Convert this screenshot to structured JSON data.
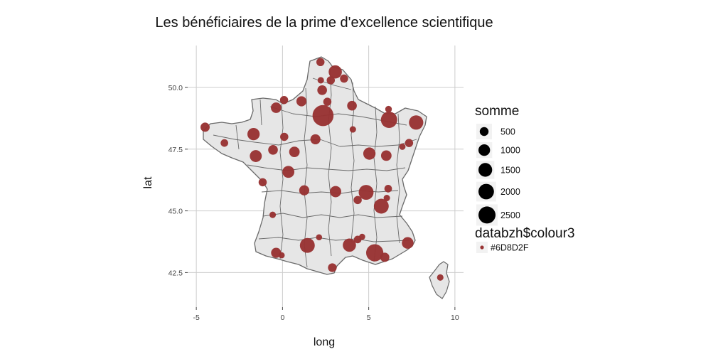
{
  "chart_data": {
    "type": "scatter",
    "title": "Les bénéficiaires de la prime d'excellence scientifique",
    "xlabel": "long",
    "ylabel": "lat",
    "xlim": [
      -5.5,
      10.5
    ],
    "ylim": [
      41.1,
      51.7
    ],
    "x_ticks": [
      -5,
      0,
      5,
      10
    ],
    "y_ticks": [
      42.5,
      45.0,
      47.5,
      50.0
    ],
    "x_tick_labels": [
      "-5",
      "0",
      "5",
      "10"
    ],
    "y_tick_labels": [
      "42.5",
      "45.0",
      "47.5",
      "50.0"
    ],
    "grid": true,
    "background": "France departments basemap",
    "point_color": "#983333",
    "map_fill": "#e6e6e6",
    "map_stroke": "#6a6a6a",
    "legend_placement": "right",
    "size_legend": {
      "title": "somme",
      "entries": [
        {
          "label": "500",
          "value": 500
        },
        {
          "label": "1000",
          "value": 1000
        },
        {
          "label": "1500",
          "value": 1500
        },
        {
          "label": "2000",
          "value": 2000
        },
        {
          "label": "2500",
          "value": 2500
        }
      ]
    },
    "colour_legend": {
      "title": "databzh$colour3",
      "entries": [
        {
          "label": "#6D8D2F",
          "color": "#983333"
        }
      ]
    },
    "points": [
      {
        "x": 2.35,
        "y": 48.86,
        "somme": 2700
      },
      {
        "x": 5.35,
        "y": 43.3,
        "somme": 1700
      },
      {
        "x": 4.85,
        "y": 45.75,
        "somme": 1200
      },
      {
        "x": 3.06,
        "y": 50.63,
        "somme": 900
      },
      {
        "x": 7.75,
        "y": 48.58,
        "somme": 1100
      },
      {
        "x": 6.18,
        "y": 48.69,
        "somme": 1500
      },
      {
        "x": 1.44,
        "y": 43.6,
        "somme": 1200
      },
      {
        "x": 5.73,
        "y": 45.19,
        "somme": 1200
      },
      {
        "x": 3.88,
        "y": 43.61,
        "somme": 900
      },
      {
        "x": -1.55,
        "y": 47.22,
        "somme": 700
      },
      {
        "x": -1.68,
        "y": 48.11,
        "somme": 750
      },
      {
        "x": 0.34,
        "y": 46.58,
        "somme": 700
      },
      {
        "x": 5.04,
        "y": 47.32,
        "somme": 750
      },
      {
        "x": 3.08,
        "y": 45.78,
        "somme": 600
      },
      {
        "x": 7.26,
        "y": 43.7,
        "somme": 650
      },
      {
        "x": -0.57,
        "y": 44.84,
        "somme": 120
      },
      {
        "x": -0.37,
        "y": 49.18,
        "somme": 500
      },
      {
        "x": 1.1,
        "y": 49.44,
        "somme": 450
      },
      {
        "x": 2.3,
        "y": 49.89,
        "somme": 400
      },
      {
        "x": 0.69,
        "y": 47.39,
        "somme": 500
      },
      {
        "x": 1.91,
        "y": 47.9,
        "somme": 450
      },
      {
        "x": 6.02,
        "y": 47.24,
        "somme": 500
      },
      {
        "x": 1.26,
        "y": 45.83,
        "somme": 450
      },
      {
        "x": -0.37,
        "y": 43.3,
        "somme": 450
      },
      {
        "x": 4.03,
        "y": 49.26,
        "somme": 400
      },
      {
        "x": -4.49,
        "y": 48.39,
        "somme": 350
      },
      {
        "x": -0.55,
        "y": 47.47,
        "somme": 400
      },
      {
        "x": 5.93,
        "y": 43.12,
        "somme": 350
      },
      {
        "x": 2.89,
        "y": 42.7,
        "somme": 300
      },
      {
        "x": 7.34,
        "y": 47.75,
        "somme": 250
      },
      {
        "x": 2.2,
        "y": 51.03,
        "somme": 250
      },
      {
        "x": 3.57,
        "y": 50.36,
        "somme": 250
      },
      {
        "x": 2.8,
        "y": 50.29,
        "somme": 250
      },
      {
        "x": 0.1,
        "y": 48.0,
        "somme": 250
      },
      {
        "x": -3.37,
        "y": 47.75,
        "somme": 200
      },
      {
        "x": 0.09,
        "y": 49.49,
        "somme": 250
      },
      {
        "x": -1.15,
        "y": 46.16,
        "somme": 250
      },
      {
        "x": 2.6,
        "y": 49.42,
        "somme": 250
      },
      {
        "x": 4.36,
        "y": 45.44,
        "somme": 250
      },
      {
        "x": 4.36,
        "y": 43.84,
        "somme": 200
      },
      {
        "x": 6.13,
        "y": 45.9,
        "somme": 200
      },
      {
        "x": 9.15,
        "y": 42.3,
        "somme": 120
      },
      {
        "x": 4.08,
        "y": 48.3,
        "somme": 120
      },
      {
        "x": -0.05,
        "y": 43.2,
        "somme": 100
      },
      {
        "x": 6.95,
        "y": 47.6,
        "somme": 120
      },
      {
        "x": 2.12,
        "y": 43.93,
        "somme": 100
      },
      {
        "x": 6.15,
        "y": 49.12,
        "somme": 130
      },
      {
        "x": 2.22,
        "y": 50.29,
        "somme": 120
      },
      {
        "x": 4.62,
        "y": 43.95,
        "somme": 100
      },
      {
        "x": 6.05,
        "y": 45.52,
        "somme": 120
      }
    ]
  }
}
